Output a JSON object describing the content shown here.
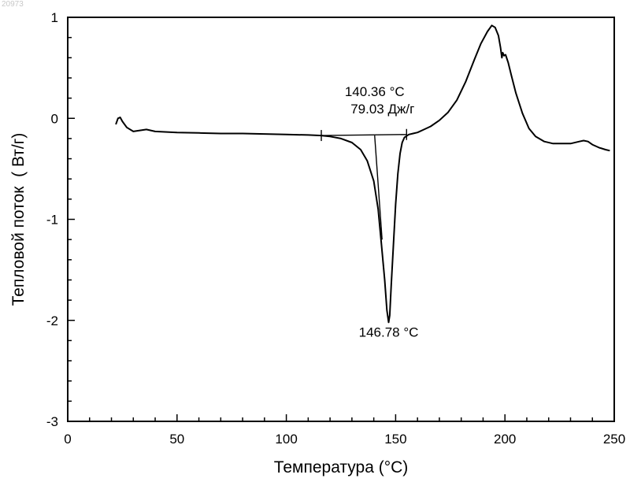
{
  "corner_id": "20973",
  "chart_data": {
    "type": "line",
    "title": "",
    "xlabel": "Температура (°C)",
    "ylabel": "Тепловой поток  ( Вт/г)",
    "xlim": [
      0,
      250
    ],
    "ylim": [
      -3,
      1
    ],
    "xticks": [
      0,
      50,
      100,
      150,
      200,
      250
    ],
    "yticks": [
      1,
      0,
      -1,
      -2,
      -3
    ],
    "grid": false,
    "series": [
      {
        "x": [
          22,
          23,
          24,
          25,
          27,
          30,
          33,
          36,
          40,
          50,
          60,
          70,
          80,
          90,
          100,
          110,
          116,
          120,
          125,
          130,
          134,
          137,
          140,
          142,
          143.5,
          145,
          146,
          146.78,
          147.3,
          148,
          149,
          150,
          151,
          152,
          153,
          154,
          156,
          158,
          160,
          163,
          166,
          170,
          174,
          178,
          182,
          186,
          189,
          192,
          194,
          195.5,
          197,
          198,
          198.6,
          199,
          199.6,
          200.3,
          201.5,
          203,
          205,
          208,
          211,
          214,
          218,
          222,
          226,
          230,
          234,
          236,
          238,
          240,
          243,
          246,
          248
        ],
        "y": [
          -0.06,
          0.0,
          0.01,
          -0.03,
          -0.09,
          -0.13,
          -0.12,
          -0.11,
          -0.13,
          -0.14,
          -0.145,
          -0.15,
          -0.15,
          -0.155,
          -0.16,
          -0.165,
          -0.17,
          -0.18,
          -0.2,
          -0.24,
          -0.31,
          -0.42,
          -0.62,
          -0.9,
          -1.25,
          -1.6,
          -1.9,
          -2.02,
          -1.95,
          -1.65,
          -1.25,
          -0.85,
          -0.55,
          -0.35,
          -0.24,
          -0.19,
          -0.16,
          -0.15,
          -0.14,
          -0.11,
          -0.08,
          -0.02,
          0.06,
          0.18,
          0.36,
          0.58,
          0.74,
          0.86,
          0.92,
          0.9,
          0.82,
          0.7,
          0.6,
          0.65,
          0.62,
          0.63,
          0.55,
          0.42,
          0.25,
          0.05,
          -0.1,
          -0.18,
          -0.23,
          -0.25,
          -0.25,
          -0.25,
          -0.23,
          -0.22,
          -0.23,
          -0.26,
          -0.29,
          -0.31,
          -0.32
        ]
      }
    ],
    "baseline": {
      "x": [
        116,
        155
      ],
      "y": [
        -0.17,
        -0.16
      ]
    },
    "onset_line": {
      "x": [
        140.4,
        143.8
      ],
      "y": [
        -0.17,
        -1.2
      ]
    },
    "limit_ticks": [
      {
        "x": 116,
        "y": -0.17
      },
      {
        "x": 155,
        "y": -0.16
      }
    ],
    "annotations": [
      {
        "id": "onset_temp",
        "text": "140.36 °C",
        "x": 140.4,
        "y": 0.22
      },
      {
        "id": "enthalpy",
        "text": "79.03 Дж/г",
        "x": 144,
        "y": 0.05
      },
      {
        "id": "peak_temp",
        "text": "146.78 °C",
        "x": 146.8,
        "y": -2.16
      }
    ]
  }
}
